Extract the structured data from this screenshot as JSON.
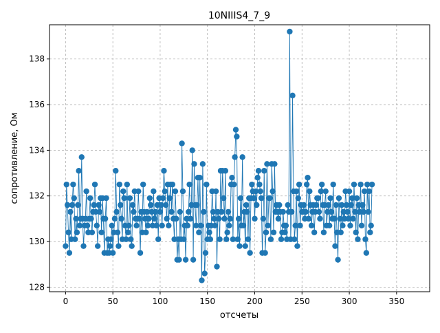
{
  "chart_data": {
    "type": "line",
    "title": "10NIIIS4_7_9",
    "xlabel": "отсчеты",
    "ylabel": "сопротивление, Ом",
    "xlim": [
      -17,
      385
    ],
    "ylim": [
      127.8,
      139.5
    ],
    "xticks": [
      0,
      50,
      100,
      150,
      200,
      250,
      300,
      350
    ],
    "yticks": [
      128,
      130,
      132,
      134,
      136,
      138
    ],
    "grid": true,
    "series": [
      {
        "color": "#1f77b4",
        "marker": "circle",
        "y": [
          129.8,
          132.5,
          131.6,
          130.4,
          129.5,
          131.3,
          130.1,
          131.6,
          132.5,
          131.9,
          130.1,
          131.0,
          130.4,
          131.6,
          133.1,
          130.7,
          131.0,
          133.7,
          131.0,
          129.8,
          130.7,
          131.0,
          132.2,
          130.7,
          130.4,
          131.0,
          131.9,
          131.0,
          130.4,
          131.3,
          131.6,
          132.5,
          131.3,
          130.7,
          129.8,
          131.6,
          131.3,
          131.9,
          130.4,
          131.9,
          131.0,
          129.5,
          131.0,
          131.9,
          129.5,
          130.1,
          129.5,
          129.8,
          130.1,
          130.7,
          129.5,
          130.4,
          131.0,
          133.1,
          131.3,
          130.4,
          129.8,
          132.5,
          131.6,
          131.0,
          130.1,
          132.2,
          131.9,
          130.7,
          130.1,
          132.5,
          130.4,
          130.7,
          131.9,
          130.1,
          129.8,
          131.6,
          131.3,
          132.2,
          131.0,
          130.7,
          131.0,
          132.2,
          131.0,
          129.5,
          131.3,
          130.4,
          132.5,
          131.3,
          131.0,
          130.4,
          131.3,
          130.7,
          131.0,
          131.9,
          131.6,
          131.3,
          130.7,
          132.2,
          131.0,
          131.3,
          130.7,
          131.6,
          130.1,
          131.9,
          131.3,
          131.6,
          130.7,
          131.9,
          133.1,
          132.2,
          131.6,
          131.0,
          132.5,
          130.7,
          131.9,
          132.5,
          131.3,
          132.5,
          131.0,
          130.1,
          132.2,
          131.0,
          129.2,
          130.1,
          129.2,
          131.3,
          130.1,
          134.3,
          132.2,
          130.1,
          130.7,
          129.2,
          131.0,
          130.7,
          131.3,
          132.5,
          131.0,
          131.6,
          134.0,
          129.2,
          133.4,
          131.6,
          130.7,
          131.6,
          132.8,
          130.4,
          132.8,
          130.7,
          128.3,
          133.4,
          131.3,
          128.6,
          129.5,
          132.5,
          130.1,
          130.7,
          130.4,
          130.1,
          130.7,
          132.2,
          131.3,
          131.0,
          130.7,
          132.2,
          128.9,
          131.3,
          131.0,
          130.1,
          133.1,
          131.3,
          133.1,
          131.9,
          131.0,
          133.1,
          130.1,
          130.4,
          131.3,
          130.7,
          131.0,
          132.5,
          132.8,
          130.1,
          132.5,
          133.7,
          134.9,
          134.6,
          130.1,
          131.0,
          129.8,
          131.9,
          130.7,
          133.7,
          130.7,
          131.3,
          129.8,
          131.6,
          131.3,
          130.1,
          131.9,
          129.5,
          131.9,
          132.5,
          132.2,
          131.9,
          131.0,
          132.2,
          131.6,
          132.8,
          133.1,
          132.5,
          132.2,
          131.9,
          129.5,
          131.0,
          133.1,
          129.5,
          130.4,
          133.4,
          130.7,
          131.9,
          131.9,
          130.1,
          133.4,
          132.2,
          130.4,
          133.4,
          131.3,
          131.6,
          131.3,
          131.0,
          131.6,
          131.3,
          130.1,
          130.4,
          131.3,
          130.7,
          130.4,
          130.7,
          130.1,
          131.6,
          131.3,
          139.2,
          130.1,
          131.3,
          136.4,
          132.2,
          130.1,
          130.7,
          132.2,
          129.8,
          131.9,
          132.5,
          130.7,
          131.6,
          131.3,
          131.3,
          131.6,
          131.0,
          131.3,
          132.5,
          132.8,
          131.0,
          132.2,
          131.6,
          130.7,
          131.3,
          131.6,
          130.4,
          131.3,
          131.6,
          131.9,
          131.9,
          131.3,
          131.0,
          132.2,
          132.5,
          131.6,
          130.4,
          131.6,
          132.2,
          130.7,
          131.3,
          131.6,
          130.7,
          131.9,
          131.3,
          131.0,
          132.5,
          131.0,
          129.8,
          131.6,
          130.4,
          129.2,
          131.9,
          131.0,
          130.4,
          131.6,
          130.7,
          131.3,
          131.0,
          132.2,
          131.6,
          131.3,
          131.0,
          132.2,
          130.7,
          131.6,
          131.9,
          131.0,
          132.5,
          131.3,
          130.4,
          131.9,
          130.1,
          131.6,
          131.3,
          132.5,
          130.7,
          131.6,
          131.3,
          132.2,
          130.1,
          129.5,
          132.5,
          131.3,
          132.2,
          130.4,
          130.7,
          132.5
        ]
      }
    ]
  }
}
